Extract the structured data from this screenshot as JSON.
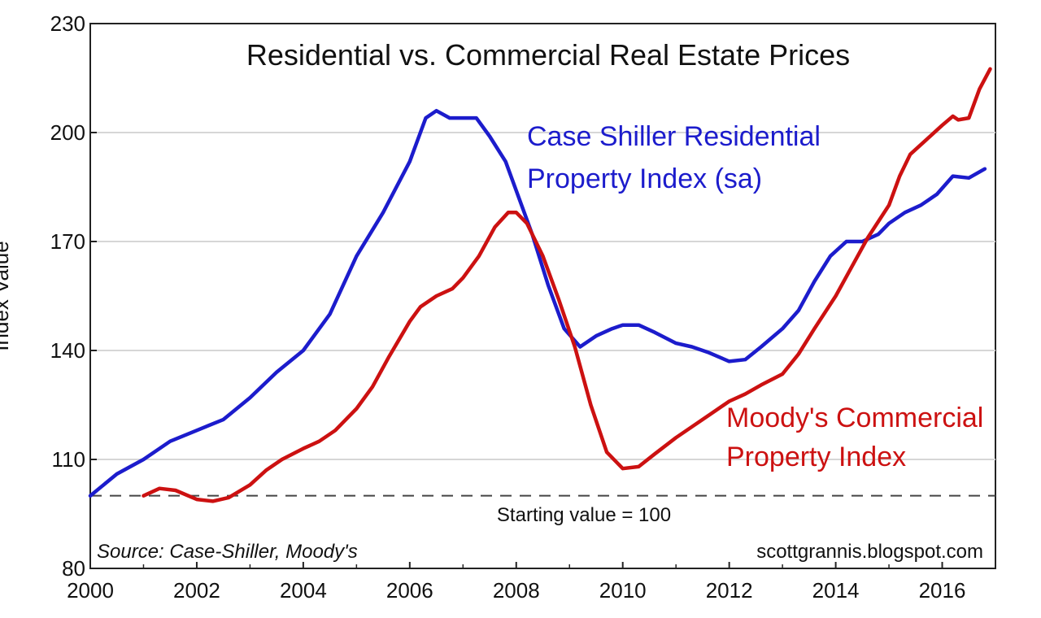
{
  "chart_data": {
    "type": "line",
    "title": "Residential vs. Commercial Real Estate Prices",
    "ylabel": "Index Value",
    "xlabel": "",
    "xlim": [
      2000,
      2017
    ],
    "ylim": [
      80,
      230
    ],
    "x_ticks": [
      "2000",
      "2002",
      "2004",
      "2006",
      "2008",
      "2010",
      "2012",
      "2014",
      "2016"
    ],
    "y_ticks": [
      "80",
      "110",
      "140",
      "170",
      "200",
      "230"
    ],
    "grid": true,
    "series": [
      {
        "name": "Case Shiller Residential Property Index (sa)",
        "color": "#1c1ccc",
        "points": [
          [
            2000.0,
            100
          ],
          [
            2000.5,
            106
          ],
          [
            2001.0,
            110
          ],
          [
            2001.5,
            115
          ],
          [
            2002.0,
            118
          ],
          [
            2002.5,
            121
          ],
          [
            2003.0,
            127
          ],
          [
            2003.5,
            134
          ],
          [
            2004.0,
            140
          ],
          [
            2004.5,
            150
          ],
          [
            2005.0,
            166
          ],
          [
            2005.5,
            178
          ],
          [
            2006.0,
            192
          ],
          [
            2006.3,
            204
          ],
          [
            2006.5,
            206
          ],
          [
            2006.75,
            204
          ],
          [
            2007.0,
            204
          ],
          [
            2007.25,
            204
          ],
          [
            2007.5,
            199
          ],
          [
            2007.8,
            192
          ],
          [
            2008.0,
            184
          ],
          [
            2008.3,
            172
          ],
          [
            2008.6,
            158
          ],
          [
            2008.9,
            146
          ],
          [
            2009.2,
            141
          ],
          [
            2009.5,
            144
          ],
          [
            2009.8,
            146
          ],
          [
            2010.0,
            147
          ],
          [
            2010.3,
            147
          ],
          [
            2010.6,
            145
          ],
          [
            2011.0,
            142
          ],
          [
            2011.3,
            141
          ],
          [
            2011.6,
            139.5
          ],
          [
            2012.0,
            137
          ],
          [
            2012.3,
            137.5
          ],
          [
            2012.6,
            141
          ],
          [
            2013.0,
            146
          ],
          [
            2013.3,
            151
          ],
          [
            2013.6,
            159
          ],
          [
            2013.9,
            166
          ],
          [
            2014.2,
            170
          ],
          [
            2014.5,
            170
          ],
          [
            2014.8,
            172
          ],
          [
            2015.0,
            175
          ],
          [
            2015.3,
            178
          ],
          [
            2015.6,
            180
          ],
          [
            2015.9,
            183
          ],
          [
            2016.2,
            188
          ],
          [
            2016.5,
            187.5
          ],
          [
            2016.8,
            190
          ]
        ]
      },
      {
        "name": "Moody's Commercial Property Index",
        "color": "#cc1111",
        "points": [
          [
            2001.0,
            100
          ],
          [
            2001.3,
            102
          ],
          [
            2001.6,
            101.5
          ],
          [
            2002.0,
            99
          ],
          [
            2002.3,
            98.5
          ],
          [
            2002.6,
            99.5
          ],
          [
            2003.0,
            103
          ],
          [
            2003.3,
            107
          ],
          [
            2003.6,
            110
          ],
          [
            2004.0,
            113
          ],
          [
            2004.3,
            115
          ],
          [
            2004.6,
            118
          ],
          [
            2005.0,
            124
          ],
          [
            2005.3,
            130
          ],
          [
            2005.6,
            138
          ],
          [
            2006.0,
            148
          ],
          [
            2006.2,
            152
          ],
          [
            2006.5,
            155
          ],
          [
            2006.8,
            157
          ],
          [
            2007.0,
            160
          ],
          [
            2007.3,
            166
          ],
          [
            2007.6,
            174
          ],
          [
            2007.85,
            178
          ],
          [
            2008.0,
            178
          ],
          [
            2008.2,
            175
          ],
          [
            2008.5,
            166
          ],
          [
            2008.8,
            154
          ],
          [
            2009.1,
            141
          ],
          [
            2009.4,
            125
          ],
          [
            2009.7,
            112
          ],
          [
            2010.0,
            107.5
          ],
          [
            2010.3,
            108
          ],
          [
            2010.6,
            111.5
          ],
          [
            2011.0,
            116
          ],
          [
            2011.3,
            119
          ],
          [
            2011.6,
            122
          ],
          [
            2012.0,
            126
          ],
          [
            2012.3,
            128
          ],
          [
            2012.6,
            130.5
          ],
          [
            2013.0,
            133.5
          ],
          [
            2013.3,
            139
          ],
          [
            2013.6,
            146
          ],
          [
            2014.0,
            155
          ],
          [
            2014.3,
            163
          ],
          [
            2014.6,
            171
          ],
          [
            2015.0,
            180
          ],
          [
            2015.2,
            188
          ],
          [
            2015.4,
            194
          ],
          [
            2015.7,
            198
          ],
          [
            2016.0,
            202
          ],
          [
            2016.2,
            204.5
          ],
          [
            2016.3,
            203.5
          ],
          [
            2016.5,
            204
          ],
          [
            2016.7,
            212
          ],
          [
            2016.9,
            217.5
          ]
        ]
      }
    ],
    "baseline": {
      "value": 100,
      "label": "Starting value = 100"
    },
    "annotations": {
      "blue_label_line1": "Case Shiller Residential",
      "blue_label_line2": "Property Index (sa)",
      "red_label_line1": "Moody's Commercial",
      "red_label_line2": "Property Index",
      "source": "Source: Case-Shiller, Moody's",
      "credit": "scottgrannis.blogspot.com"
    }
  }
}
